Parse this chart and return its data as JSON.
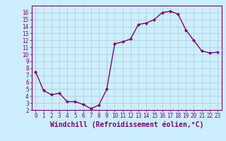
{
  "x": [
    0,
    1,
    2,
    3,
    4,
    5,
    6,
    7,
    8,
    9,
    10,
    11,
    12,
    13,
    14,
    15,
    16,
    17,
    18,
    19,
    20,
    21,
    22,
    23
  ],
  "y": [
    7.5,
    4.8,
    4.2,
    4.4,
    3.2,
    3.2,
    2.8,
    2.2,
    2.7,
    5.0,
    11.5,
    11.8,
    12.2,
    14.3,
    14.5,
    15.0,
    16.0,
    16.2,
    15.8,
    13.5,
    12.0,
    10.5,
    10.2,
    10.3
  ],
  "line_color": "#800080",
  "marker": "D",
  "marker_size": 2,
  "bg_color": "#cceeff",
  "grid_color": "#aacccc",
  "xlabel": "Windchill (Refroidissement éolien,°C)",
  "xlim": [
    -0.5,
    23.5
  ],
  "ylim": [
    2,
    17
  ],
  "yticks": [
    2,
    3,
    4,
    5,
    6,
    7,
    8,
    9,
    10,
    11,
    12,
    13,
    14,
    15,
    16
  ],
  "xticks": [
    0,
    1,
    2,
    3,
    4,
    5,
    6,
    7,
    8,
    9,
    10,
    11,
    12,
    13,
    14,
    15,
    16,
    17,
    18,
    19,
    20,
    21,
    22,
    23
  ],
  "tick_color": "#800080",
  "spine_color": "#800080",
  "label_color": "#800080",
  "label_fontsize": 7,
  "tick_fontsize": 5.5
}
